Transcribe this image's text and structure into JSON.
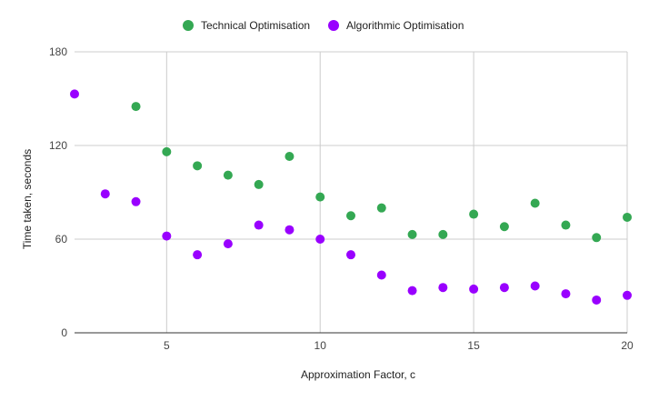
{
  "chart_data": {
    "type": "scatter",
    "xlabel": "Approximation Factor, c",
    "ylabel": "Time taken, seconds",
    "xlim": [
      2,
      20
    ],
    "ylim": [
      0,
      180
    ],
    "x_ticks": [
      5,
      10,
      15,
      20
    ],
    "y_ticks": [
      0,
      60,
      120,
      180
    ],
    "grid": true,
    "legend_position": "top",
    "series": [
      {
        "name": "Technical Optimisation",
        "color": "#34a853",
        "points": [
          {
            "x": 4,
            "y": 145
          },
          {
            "x": 5,
            "y": 116
          },
          {
            "x": 6,
            "y": 107
          },
          {
            "x": 7,
            "y": 101
          },
          {
            "x": 8,
            "y": 95
          },
          {
            "x": 9,
            "y": 113
          },
          {
            "x": 10,
            "y": 87
          },
          {
            "x": 11,
            "y": 75
          },
          {
            "x": 12,
            "y": 80
          },
          {
            "x": 13,
            "y": 63
          },
          {
            "x": 14,
            "y": 63
          },
          {
            "x": 15,
            "y": 76
          },
          {
            "x": 16,
            "y": 68
          },
          {
            "x": 17,
            "y": 83
          },
          {
            "x": 18,
            "y": 69
          },
          {
            "x": 19,
            "y": 61
          },
          {
            "x": 20,
            "y": 74
          }
        ]
      },
      {
        "name": "Algorithmic Optimisation",
        "color": "#9900ff",
        "points": [
          {
            "x": 2,
            "y": 153
          },
          {
            "x": 3,
            "y": 89
          },
          {
            "x": 4,
            "y": 84
          },
          {
            "x": 5,
            "y": 62
          },
          {
            "x": 6,
            "y": 50
          },
          {
            "x": 7,
            "y": 57
          },
          {
            "x": 8,
            "y": 69
          },
          {
            "x": 9,
            "y": 66
          },
          {
            "x": 10,
            "y": 60
          },
          {
            "x": 11,
            "y": 50
          },
          {
            "x": 12,
            "y": 37
          },
          {
            "x": 13,
            "y": 27
          },
          {
            "x": 14,
            "y": 29
          },
          {
            "x": 15,
            "y": 28
          },
          {
            "x": 16,
            "y": 29
          },
          {
            "x": 17,
            "y": 30
          },
          {
            "x": 18,
            "y": 25
          },
          {
            "x": 19,
            "y": 21
          },
          {
            "x": 20,
            "y": 24
          }
        ]
      }
    ]
  }
}
